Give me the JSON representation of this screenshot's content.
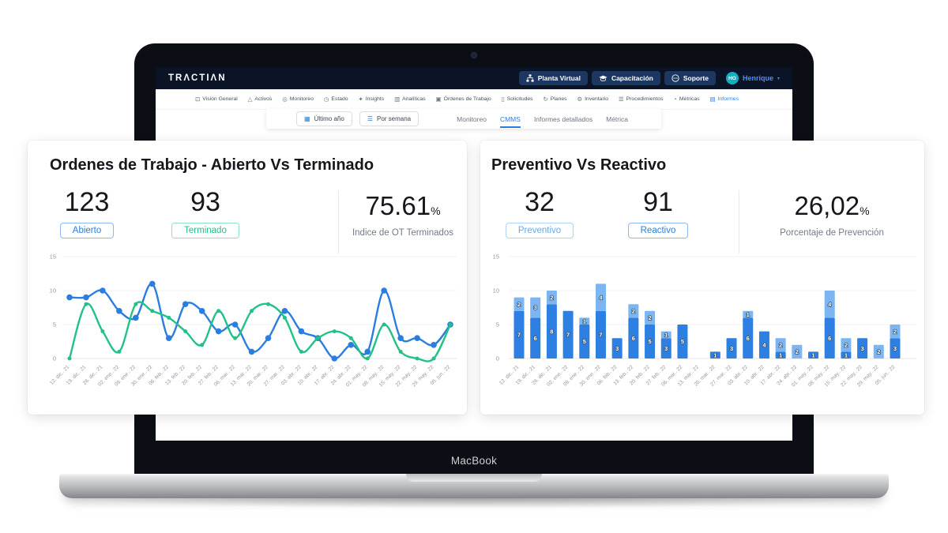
{
  "laptop": {
    "brand_label": "MacBook"
  },
  "colors": {
    "header_bg": "#0a1426",
    "header_button_bg": "#1c3862",
    "accent_blue": "#2b7de0",
    "green": "#22c186",
    "light_blue": "#7cb5f1",
    "avatar_teal": "#12b0bf",
    "grid": "#eef1f4",
    "axis_label": "#8f97a5"
  },
  "header": {
    "logo": "TRΛCTIΛN",
    "buttons": [
      {
        "name": "planta-virtual",
        "icon": "sitemap-icon",
        "label": "Planta Virtual"
      },
      {
        "name": "capacitacion",
        "icon": "graduation-cap-icon",
        "label": "Capacitación"
      },
      {
        "name": "soporte",
        "icon": "chat-bubble-icon",
        "label": "Soporte"
      }
    ],
    "user": {
      "initials": "HO",
      "name": "Henrique",
      "chevron": "▾"
    }
  },
  "nav": {
    "items": [
      {
        "name": "vision-general",
        "icon": "monitor-icon",
        "glyph": "⊡",
        "label": "Visión General",
        "active": false
      },
      {
        "name": "activos",
        "icon": "asset-icon",
        "glyph": "△",
        "label": "Activos",
        "active": false
      },
      {
        "name": "monitoreo",
        "icon": "sensor-icon",
        "glyph": "◎",
        "label": "Monitoreo",
        "active": false
      },
      {
        "name": "estado",
        "icon": "clock-icon",
        "glyph": "◷",
        "label": "Estado",
        "active": false
      },
      {
        "name": "insights",
        "icon": "spark-icon",
        "glyph": "✦",
        "label": "Insights",
        "active": false
      },
      {
        "name": "analiticas",
        "icon": "bar-chart-icon",
        "glyph": "▥",
        "label": "Analíticas",
        "active": false
      },
      {
        "name": "ordenes-de-trabajo",
        "icon": "work-order-icon",
        "glyph": "▣",
        "label": "Órdenes de Trabajo",
        "active": false
      },
      {
        "name": "solicitudes",
        "icon": "request-icon",
        "glyph": "▯",
        "label": "Solicitudes",
        "active": false
      },
      {
        "name": "planes",
        "icon": "recurrence-icon",
        "glyph": "↻",
        "label": "Planes",
        "active": false
      },
      {
        "name": "inventario",
        "icon": "tools-icon",
        "glyph": "⚙",
        "label": "Inventario",
        "active": false
      },
      {
        "name": "procedimientos",
        "icon": "list-lines-icon",
        "glyph": "☰",
        "label": "Procedimientos",
        "active": false
      },
      {
        "name": "metricas",
        "icon": "gauge-icon",
        "glyph": "◔",
        "label": "Métricas",
        "active": false
      },
      {
        "name": "informes",
        "icon": "report-icon",
        "glyph": "▤",
        "label": "Informes",
        "active": true
      }
    ]
  },
  "subnav": {
    "filters": [
      {
        "name": "ultimo-ano",
        "icon": "calendar-icon",
        "glyph": "▦",
        "label": "Último año"
      },
      {
        "name": "por-semana",
        "icon": "list-icon",
        "glyph": "☰",
        "label": "Por semana"
      }
    ],
    "tabs": [
      {
        "name": "monitoreo",
        "label": "Monitoreo",
        "active": false
      },
      {
        "name": "cmms",
        "label": "CMMS",
        "active": true
      },
      {
        "name": "informes-detallados",
        "label": "Informes detallados",
        "active": false
      },
      {
        "name": "metrica",
        "label": "Métrica",
        "active": false
      }
    ]
  },
  "left_card": {
    "title": "Ordenes de Trabajo - Abierto Vs Terminado",
    "stat_open": {
      "value": "123",
      "label": "Abierto"
    },
    "stat_done": {
      "value": "93",
      "label": "Terminado"
    },
    "stat_rate": {
      "value": "75.61",
      "suffix": "%",
      "caption": "Indice de OT Terminados"
    }
  },
  "right_card": {
    "title": "Preventivo Vs Reactivo",
    "stat_preventive": {
      "value": "32",
      "label": "Preventivo"
    },
    "stat_reactive": {
      "value": "91",
      "label": "Reactivo"
    },
    "stat_rate": {
      "value": "26,02",
      "suffix": "%",
      "caption": "Porcentaje de Prevención"
    }
  },
  "chart_data": [
    {
      "type": "line",
      "title": "Ordenes de Trabajo - Abierto Vs Terminado",
      "categories": [
        "12. dic.. 21",
        "19. dic.. 21",
        "26. dic.. 21",
        "02. ene.. 22",
        "09. ene.. 22",
        "30. ene.. 22",
        "06. feb.. 22",
        "13. feb.. 22",
        "20. feb.. 22",
        "27. feb.. 22",
        "06. mar.. 22",
        "13. mar.. 22",
        "20. mar.. 22",
        "27. mar.. 22",
        "03. abr.. 22",
        "10. abr.. 22",
        "17. abr.. 22",
        "24. abr.. 22",
        "01. may.. 22",
        "08. may.. 22",
        "15. may.. 22",
        "22. may.. 22",
        "29. may.. 22",
        "05. jun.. 22"
      ],
      "series": [
        {
          "name": "Abierto",
          "color": "#2b7de0",
          "values": [
            9,
            9,
            10,
            7,
            6,
            11,
            3,
            8,
            7,
            4,
            5,
            1,
            3,
            7,
            4,
            3,
            0,
            2,
            1,
            10,
            3,
            3,
            2,
            5
          ]
        },
        {
          "name": "Terminado",
          "color": "#22c186",
          "values": [
            0,
            8,
            4,
            1,
            8,
            7,
            6,
            4,
            2,
            7,
            3,
            7,
            8,
            6,
            1,
            3,
            4,
            3,
            0,
            5,
            1,
            0,
            0,
            5
          ]
        }
      ],
      "xlabel": "",
      "ylabel": "",
      "ylim": [
        0,
        15
      ],
      "yticks": [
        0,
        5,
        10,
        15
      ],
      "grid": true,
      "legend_position": "none"
    },
    {
      "type": "bar",
      "subtype": "stacked",
      "title": "Preventivo Vs Reactivo",
      "categories": [
        "12. dic.. 21",
        "19. dic.. 21",
        "26. dic.. 21",
        "02. ene.. 22",
        "09. ene.. 22",
        "30. ene.. 22",
        "06. feb.. 22",
        "13. feb.. 22",
        "20. feb.. 22",
        "27. feb.. 22",
        "06. mar.. 22",
        "13. mar.. 22",
        "20. mar.. 22",
        "27. mar.. 22",
        "03. abr.. 22",
        "10. abr.. 22",
        "17. abr.. 22",
        "24. abr.. 22",
        "01. may.. 22",
        "08. may.. 22",
        "15. may.. 22",
        "22. may.. 22",
        "29. may.. 22",
        "05. jun.. 22"
      ],
      "series": [
        {
          "name": "Reactivo",
          "color": "#2e7fe2",
          "values": [
            7,
            6,
            8,
            7,
            5,
            7,
            3,
            6,
            5,
            3,
            5,
            0,
            1,
            3,
            6,
            4,
            1,
            0,
            1,
            6,
            1,
            3,
            0,
            3
          ]
        },
        {
          "name": "Preventivo",
          "color": "#7cb5f1",
          "values": [
            2,
            3,
            2,
            0,
            1,
            4,
            0,
            2,
            2,
            1,
            0,
            0,
            0,
            0,
            1,
            0,
            2,
            2,
            0,
            4,
            2,
            0,
            2,
            2
          ]
        }
      ],
      "xlabel": "",
      "ylabel": "",
      "ylim": [
        0,
        15
      ],
      "yticks": [
        0,
        5,
        10,
        15
      ],
      "grid": true,
      "bar_value_labels": true,
      "legend_position": "none"
    }
  ]
}
